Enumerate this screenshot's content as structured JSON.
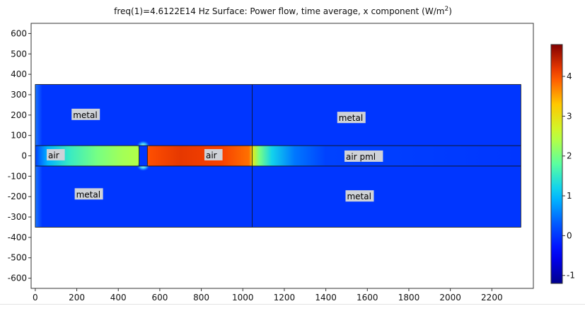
{
  "chart_data": {
    "type": "heatmap",
    "title": {
      "prefix": "freq(1)=4.6122E14 Hz   Surface: Power flow, time average, x component (W/m",
      "sup": "2",
      "suffix": ")"
    },
    "xlim": [
      -20,
      2400
    ],
    "ylim": [
      -650,
      650
    ],
    "xticks": [
      0,
      200,
      400,
      600,
      800,
      1000,
      1200,
      1400,
      1600,
      1800,
      2000,
      2200
    ],
    "yticks": [
      600,
      500,
      400,
      300,
      200,
      100,
      0,
      -100,
      -200,
      -300,
      -400,
      -500,
      -600
    ],
    "colorbar": {
      "min": -1.2,
      "max": 4.8,
      "ticks": [
        4,
        3,
        2,
        1,
        0,
        -1
      ]
    },
    "domain": {
      "x": [
        0,
        2340
      ],
      "y": [
        -350,
        350
      ]
    },
    "waveguide_y": [
      -50,
      50
    ],
    "boundaries_x": [
      1045
    ],
    "slit": {
      "x": [
        500,
        540
      ]
    },
    "value_profile": [
      {
        "x": 0,
        "v": 0.1
      },
      {
        "x": 60,
        "v": 0.9
      },
      {
        "x": 160,
        "v": 1.5
      },
      {
        "x": 300,
        "v": 2.0
      },
      {
        "x": 420,
        "v": 2.3
      },
      {
        "x": 500,
        "v": 2.4
      },
      {
        "x": 540,
        "v": 4.0
      },
      {
        "x": 700,
        "v": 4.2
      },
      {
        "x": 900,
        "v": 4.1
      },
      {
        "x": 1030,
        "v": 3.8
      },
      {
        "x": 1050,
        "v": 2.8
      },
      {
        "x": 1080,
        "v": 2.0
      },
      {
        "x": 1140,
        "v": 1.2
      },
      {
        "x": 1250,
        "v": 0.5
      },
      {
        "x": 1400,
        "v": 0.1
      },
      {
        "x": 2340,
        "v": 0.0
      }
    ],
    "labels": [
      {
        "text": "metal",
        "x": 175,
        "y": 200
      },
      {
        "text": "metal",
        "x": 1455,
        "y": 185
      },
      {
        "text": "air",
        "x": 55,
        "y": 2
      },
      {
        "text": "air",
        "x": 815,
        "y": 2
      },
      {
        "text": "air pml",
        "x": 1490,
        "y": -5
      },
      {
        "text": "metal",
        "x": 190,
        "y": -190
      },
      {
        "text": "metal",
        "x": 1495,
        "y": -200
      }
    ]
  }
}
